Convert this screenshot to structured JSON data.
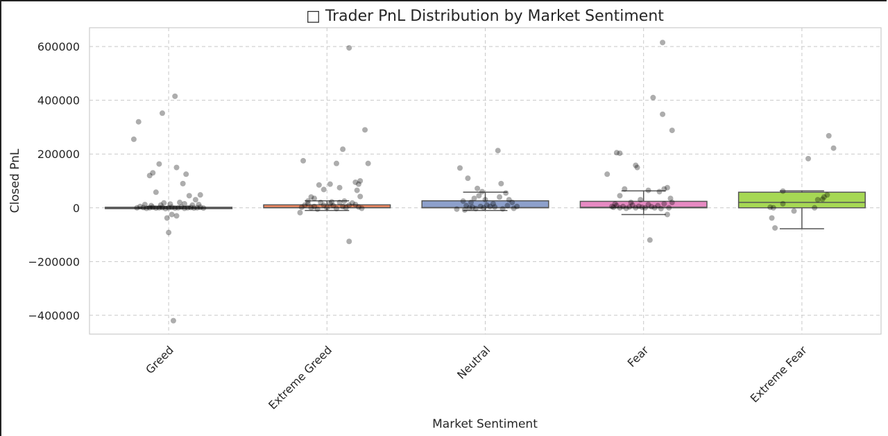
{
  "chart_data": {
    "type": "box",
    "title": "□ Trader PnL Distribution by Market Sentiment",
    "xlabel": "Market Sentiment",
    "ylabel": "Closed PnL",
    "ylim": [
      -470000,
      670000
    ],
    "yticks": [
      -400000,
      -200000,
      0,
      200000,
      400000,
      600000
    ],
    "grid": true,
    "categories": [
      "Greed",
      "Extreme Greed",
      "Neutral",
      "Fear",
      "Extreme Fear"
    ],
    "colors": [
      "#66c2a5",
      "#fc8d62",
      "#8da0cb",
      "#e78ac3",
      "#a6d854"
    ],
    "boxes": [
      {
        "q1": -1000,
        "median": 0,
        "q3": 2000,
        "whisker_low": -3000,
        "whisker_high": 5000
      },
      {
        "q1": 0,
        "median": 1000,
        "q3": 11000,
        "whisker_low": -10000,
        "whisker_high": 26000
      },
      {
        "q1": 0,
        "median": 1000,
        "q3": 26000,
        "whisker_low": -10000,
        "whisker_high": 58000
      },
      {
        "q1": 0,
        "median": 2000,
        "q3": 24000,
        "whisker_low": -25000,
        "whisker_high": 63000
      },
      {
        "q1": 0,
        "median": 20000,
        "q3": 58000,
        "whisker_low": -78000,
        "whisker_high": 63000
      }
    ],
    "points": [
      [
        [
          -0.22,
          255000
        ],
        [
          -0.19,
          320000
        ],
        [
          -0.12,
          120000
        ],
        [
          -0.1,
          130000
        ],
        [
          -0.06,
          163000
        ],
        [
          -0.04,
          352000
        ],
        [
          0.04,
          415000
        ],
        [
          0.05,
          150000
        ],
        [
          0.09,
          90000
        ],
        [
          0.11,
          125000
        ],
        [
          0.13,
          45000
        ],
        [
          0.17,
          30000
        ],
        [
          0.2,
          48000
        ],
        [
          -0.08,
          58000
        ],
        [
          0.0,
          -92000
        ],
        [
          0.03,
          -420000
        ],
        [
          -0.01,
          -38000
        ],
        [
          0.05,
          -30000
        ],
        [
          0.02,
          -25000
        ],
        [
          0.07,
          20000
        ],
        [
          0.1,
          15000
        ],
        [
          -0.15,
          12000
        ],
        [
          -0.18,
          5000
        ],
        [
          -0.2,
          0
        ],
        [
          -0.16,
          1000
        ],
        [
          -0.14,
          -2000
        ],
        [
          -0.12,
          0
        ],
        [
          -0.1,
          2000
        ],
        [
          -0.08,
          -1000
        ],
        [
          -0.06,
          0
        ],
        [
          -0.04,
          1000
        ],
        [
          -0.02,
          -3000
        ],
        [
          0.0,
          0
        ],
        [
          0.02,
          2000
        ],
        [
          0.04,
          -1000
        ],
        [
          0.06,
          0
        ],
        [
          0.08,
          3000
        ],
        [
          0.1,
          -2000
        ],
        [
          0.12,
          0
        ],
        [
          0.14,
          1000
        ],
        [
          0.16,
          -1000
        ],
        [
          0.18,
          0
        ],
        [
          0.2,
          2000
        ],
        [
          0.22,
          -1000
        ],
        [
          -0.11,
          8000
        ],
        [
          -0.05,
          10000
        ],
        [
          0.01,
          14000
        ],
        [
          0.15,
          10000
        ],
        [
          0.19,
          12000
        ],
        [
          -0.03,
          18000
        ]
      ],
      [
        [
          -0.15,
          175000
        ],
        [
          -0.05,
          85000
        ],
        [
          -0.02,
          68000
        ],
        [
          0.02,
          88000
        ],
        [
          0.1,
          218000
        ],
        [
          0.08,
          75000
        ],
        [
          0.18,
          95000
        ],
        [
          0.24,
          290000
        ],
        [
          0.2,
          88000
        ],
        [
          0.21,
          100000
        ],
        [
          0.26,
          165000
        ],
        [
          0.19,
          65000
        ],
        [
          0.14,
          595000
        ],
        [
          0.06,
          165000
        ],
        [
          0.14,
          -125000
        ],
        [
          -0.17,
          -18000
        ],
        [
          -0.12,
          25000
        ],
        [
          -0.08,
          35000
        ],
        [
          -0.1,
          40000
        ],
        [
          0.21,
          42000
        ],
        [
          -0.14,
          10000
        ],
        [
          -0.12,
          15000
        ],
        [
          -0.1,
          0
        ],
        [
          -0.08,
          5000
        ],
        [
          -0.06,
          -5000
        ],
        [
          -0.04,
          20000
        ],
        [
          -0.02,
          10000
        ],
        [
          0.0,
          0
        ],
        [
          0.02,
          15000
        ],
        [
          0.04,
          8000
        ],
        [
          0.06,
          -3000
        ],
        [
          0.08,
          20000
        ],
        [
          0.1,
          5000
        ],
        [
          0.12,
          0
        ],
        [
          0.14,
          10000
        ],
        [
          0.16,
          18000
        ],
        [
          0.18,
          12000
        ],
        [
          0.2,
          3000
        ],
        [
          0.22,
          -2000
        ],
        [
          -0.16,
          2000
        ],
        [
          0.03,
          22000
        ],
        [
          0.11,
          25000
        ]
      ],
      [
        [
          -0.16,
          148000
        ],
        [
          -0.11,
          110000
        ],
        [
          0.08,
          213000
        ],
        [
          0.1,
          90000
        ],
        [
          -0.05,
          72000
        ],
        [
          -0.02,
          60000
        ],
        [
          0.09,
          40000
        ],
        [
          0.13,
          55000
        ],
        [
          0.15,
          30000
        ],
        [
          0.17,
          20000
        ],
        [
          -0.14,
          25000
        ],
        [
          -0.09,
          20000
        ],
        [
          -0.07,
          35000
        ],
        [
          -0.04,
          45000
        ],
        [
          0.0,
          30000
        ],
        [
          0.05,
          15000
        ],
        [
          -0.12,
          8000
        ],
        [
          -0.1,
          0
        ],
        [
          -0.08,
          2000
        ],
        [
          -0.06,
          -3000
        ],
        [
          -0.03,
          5000
        ],
        [
          -0.01,
          0
        ],
        [
          0.01,
          10000
        ],
        [
          0.03,
          5000
        ],
        [
          0.06,
          3000
        ],
        [
          0.11,
          -4000
        ],
        [
          0.14,
          8000
        ],
        [
          0.18,
          -2000
        ],
        [
          0.2,
          5000
        ],
        [
          -0.13,
          -8000
        ],
        [
          -0.18,
          -5000
        ]
      ],
      [
        [
          -0.23,
          125000
        ],
        [
          -0.17,
          205000
        ],
        [
          -0.15,
          203000
        ],
        [
          -0.05,
          158000
        ],
        [
          -0.04,
          150000
        ],
        [
          0.06,
          410000
        ],
        [
          0.12,
          348000
        ],
        [
          0.12,
          615000
        ],
        [
          0.18,
          288000
        ],
        [
          -0.12,
          70000
        ],
        [
          0.03,
          65000
        ],
        [
          0.1,
          60000
        ],
        [
          0.15,
          75000
        ],
        [
          -0.15,
          45000
        ],
        [
          -0.18,
          15000
        ],
        [
          -0.2,
          5000
        ],
        [
          0.13,
          70000
        ],
        [
          0.17,
          35000
        ],
        [
          0.15,
          -25000
        ],
        [
          0.04,
          -120000
        ],
        [
          -0.19,
          2000
        ],
        [
          -0.17,
          8000
        ],
        [
          -0.15,
          0
        ],
        [
          -0.13,
          5000
        ],
        [
          -0.11,
          -2000
        ],
        [
          -0.09,
          3000
        ],
        [
          -0.07,
          10000
        ],
        [
          -0.05,
          0
        ],
        [
          -0.03,
          6000
        ],
        [
          -0.01,
          2000
        ],
        [
          0.01,
          0
        ],
        [
          0.03,
          12000
        ],
        [
          0.05,
          4000
        ],
        [
          0.07,
          0
        ],
        [
          0.09,
          8000
        ],
        [
          0.11,
          -3000
        ],
        [
          0.13,
          15000
        ],
        [
          0.16,
          0
        ],
        [
          0.18,
          20000
        ],
        [
          -0.02,
          30000
        ],
        [
          -0.08,
          20000
        ]
      ],
      [
        [
          -0.17,
          -75000
        ],
        [
          -0.18,
          0
        ],
        [
          -0.19,
          -38000
        ],
        [
          -0.2,
          2000
        ],
        [
          -0.12,
          15000
        ],
        [
          -0.12,
          62000
        ],
        [
          -0.05,
          -12000
        ],
        [
          0.04,
          183000
        ],
        [
          0.08,
          0
        ],
        [
          0.1,
          30000
        ],
        [
          0.14,
          40000
        ],
        [
          0.16,
          48000
        ],
        [
          0.17,
          268000
        ],
        [
          0.2,
          222000
        ],
        [
          0.13,
          32000
        ]
      ]
    ]
  }
}
